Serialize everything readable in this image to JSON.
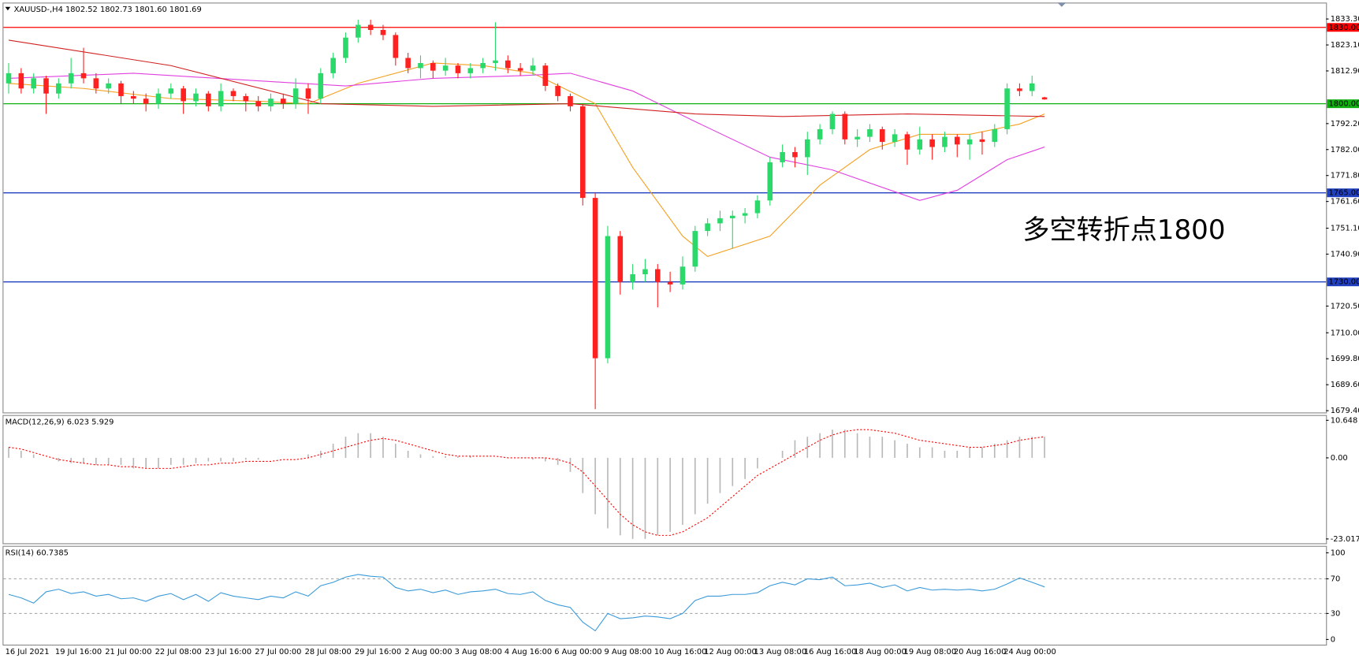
{
  "chart_data": [
    {
      "type": "candlestick",
      "title": "XAUUSD-,H4  1802.52 1802.73 1801.60 1801.69",
      "annotation": "多空转折点1800",
      "annotation_color": "#ff0000",
      "up_color": "#2bd96b",
      "down_color": "#ff2020",
      "ylim": [
        1678.7,
        1839.4
      ],
      "yticks": [
        {
          "value": 1679.4,
          "label": "1679.40"
        },
        {
          "value": 1689.6,
          "label": "1689.60"
        },
        {
          "value": 1699.8,
          "label": "1699.80"
        },
        {
          "value": 1710,
          "label": "1710.00"
        },
        {
          "value": 1720.5,
          "label": "1720.50"
        },
        {
          "value": 1740.9,
          "label": "1740.90"
        },
        {
          "value": 1751.1,
          "label": "1751.10"
        },
        {
          "value": 1761.6,
          "label": "1761.60"
        },
        {
          "value": 1771.8,
          "label": "1771.80"
        },
        {
          "value": 1782,
          "label": "1782.00"
        },
        {
          "value": 1792.2,
          "label": "1792.20"
        },
        {
          "value": 1812.9,
          "label": "1812.90"
        },
        {
          "value": 1823.1,
          "label": "1823.10"
        },
        {
          "value": 1833.3,
          "label": "1833.30"
        }
      ],
      "levels": [
        {
          "value": 1830,
          "label": "1830.00",
          "color": "#ff0000"
        },
        {
          "value": 1800,
          "label": "1800.00",
          "color": "#10b010"
        },
        {
          "value": 1765,
          "label": "1765.00",
          "color": "#2040c0"
        },
        {
          "value": 1730,
          "label": "1730.00",
          "color": "#2040c0"
        }
      ],
      "lines": [
        {
          "color": "#f5a020",
          "x": [
            0,
            6,
            13,
            20,
            24,
            28,
            34,
            38,
            42,
            47,
            50,
            54,
            56,
            61,
            65,
            69,
            73,
            77,
            81,
            83
          ],
          "values": [
            1808,
            1806,
            1802,
            1801,
            1800,
            1808,
            1816,
            1815,
            1812,
            1800,
            1775,
            1748,
            1740,
            1748,
            1768,
            1782,
            1788,
            1788,
            1792,
            1796
          ]
        },
        {
          "color": "#e040e0",
          "x": [
            0,
            10,
            20,
            27,
            34,
            41,
            45,
            50,
            55,
            61,
            66,
            73,
            76,
            80,
            83
          ],
          "values": [
            1810,
            1812,
            1809,
            1807,
            1810,
            1811,
            1812,
            1805,
            1793,
            1779,
            1774,
            1762,
            1766,
            1778,
            1783
          ]
        },
        {
          "color": "#d02020",
          "x": [
            0,
            13,
            25,
            34,
            45,
            55,
            62,
            72,
            83
          ],
          "values": [
            1825,
            1815,
            1800,
            1799,
            1800,
            1796,
            1795,
            1796,
            1795
          ]
        }
      ],
      "candles": [
        [
          1808,
          1816,
          1804,
          1812
        ],
        [
          1812,
          1814,
          1804,
          1806
        ],
        [
          1806,
          1812,
          1804,
          1810
        ],
        [
          1810,
          1811,
          1796,
          1804
        ],
        [
          1804,
          1810,
          1802,
          1808
        ],
        [
          1808,
          1818,
          1806,
          1812
        ],
        [
          1812,
          1822,
          1808,
          1810
        ],
        [
          1810,
          1812,
          1804,
          1806
        ],
        [
          1806,
          1810,
          1804,
          1808
        ],
        [
          1808,
          1809,
          1800,
          1803
        ],
        [
          1803,
          1805,
          1800,
          1802
        ],
        [
          1802,
          1804,
          1797,
          1800
        ],
        [
          1800,
          1806,
          1798,
          1804
        ],
        [
          1804,
          1808,
          1802,
          1806
        ],
        [
          1806,
          1807,
          1796,
          1801
        ],
        [
          1801,
          1806,
          1799,
          1804
        ],
        [
          1804,
          1805,
          1797,
          1799
        ],
        [
          1799,
          1808,
          1797,
          1805
        ],
        [
          1805,
          1806,
          1801,
          1803
        ],
        [
          1803,
          1804,
          1797,
          1801
        ],
        [
          1801,
          1803,
          1797,
          1799
        ],
        [
          1799,
          1804,
          1797,
          1802
        ],
        [
          1802,
          1804,
          1798,
          1800
        ],
        [
          1800,
          1810,
          1798,
          1806
        ],
        [
          1806,
          1808,
          1796,
          1802
        ],
        [
          1802,
          1814,
          1800,
          1812
        ],
        [
          1812,
          1820,
          1810,
          1818
        ],
        [
          1818,
          1828,
          1816,
          1826
        ],
        [
          1826,
          1833,
          1824,
          1831
        ],
        [
          1831,
          1833,
          1827,
          1829
        ],
        [
          1829,
          1831,
          1825,
          1827
        ],
        [
          1827,
          1828,
          1815,
          1818
        ],
        [
          1818,
          1820,
          1812,
          1814
        ],
        [
          1814,
          1819,
          1810,
          1816
        ],
        [
          1816,
          1817,
          1810,
          1813
        ],
        [
          1813,
          1818,
          1811,
          1815
        ],
        [
          1815,
          1816,
          1810,
          1812
        ],
        [
          1812,
          1816,
          1810,
          1814
        ],
        [
          1814,
          1818,
          1812,
          1816
        ],
        [
          1816,
          1832,
          1813,
          1817
        ],
        [
          1817,
          1819,
          1812,
          1814
        ],
        [
          1814,
          1816,
          1811,
          1813
        ],
        [
          1813,
          1818,
          1811,
          1815
        ],
        [
          1815,
          1816,
          1805,
          1807
        ],
        [
          1807,
          1808,
          1801,
          1803
        ],
        [
          1803,
          1804,
          1797,
          1799
        ],
        [
          1799,
          1800,
          1760,
          1763
        ],
        [
          1763,
          1765,
          1680,
          1700
        ],
        [
          1700,
          1752,
          1698,
          1748
        ],
        [
          1748,
          1750,
          1725,
          1730
        ],
        [
          1730,
          1737,
          1727,
          1733
        ],
        [
          1733,
          1739,
          1730,
          1735
        ],
        [
          1735,
          1737,
          1720,
          1730
        ],
        [
          1730,
          1734,
          1726,
          1729
        ],
        [
          1729,
          1740,
          1727,
          1736
        ],
        [
          1736,
          1752,
          1734,
          1750
        ],
        [
          1750,
          1755,
          1748,
          1753
        ],
        [
          1753,
          1758,
          1750,
          1755
        ],
        [
          1755,
          1758,
          1743,
          1756
        ],
        [
          1756,
          1759,
          1753,
          1757
        ],
        [
          1757,
          1764,
          1755,
          1762
        ],
        [
          1762,
          1779,
          1760,
          1777
        ],
        [
          1777,
          1784,
          1775,
          1781
        ],
        [
          1781,
          1783,
          1775,
          1779
        ],
        [
          1779,
          1789,
          1772,
          1786
        ],
        [
          1786,
          1792,
          1784,
          1790
        ],
        [
          1790,
          1797,
          1788,
          1796
        ],
        [
          1796,
          1797,
          1784,
          1786
        ],
        [
          1786,
          1790,
          1783,
          1787
        ],
        [
          1787,
          1792,
          1785,
          1790
        ],
        [
          1790,
          1791,
          1782,
          1785
        ],
        [
          1785,
          1790,
          1783,
          1788
        ],
        [
          1788,
          1789,
          1776,
          1782
        ],
        [
          1782,
          1791,
          1780,
          1786
        ],
        [
          1786,
          1788,
          1778,
          1783
        ],
        [
          1783,
          1789,
          1781,
          1787
        ],
        [
          1787,
          1788,
          1779,
          1784
        ],
        [
          1784,
          1788,
          1778,
          1786
        ],
        [
          1786,
          1789,
          1780,
          1785
        ],
        [
          1785,
          1792,
          1783,
          1790
        ],
        [
          1790,
          1808,
          1788,
          1806
        ],
        [
          1806,
          1808,
          1803,
          1805
        ],
        [
          1805,
          1811,
          1803,
          1808
        ],
        [
          1802.52,
          1802.73,
          1801.6,
          1801.69
        ]
      ]
    },
    {
      "type": "macd",
      "title": "MACD(12,26,9) 6.023 5.929",
      "ylim": [
        -24.25,
        11.9
      ],
      "yticks": [
        {
          "value": 10.648,
          "label": "10.648"
        },
        {
          "value": 0,
          "label": "0.00"
        },
        {
          "value": -23.017,
          "label": "-23.017"
        }
      ],
      "histogram": {
        "color": "#b8b8b8",
        "values": [
          3,
          2,
          1,
          0,
          -1,
          -1.5,
          -1.5,
          -2,
          -2,
          -2,
          -3,
          -3,
          -3,
          -2,
          -2,
          -1.5,
          -1,
          -1,
          -1,
          -0.5,
          -0.5,
          0,
          0,
          0,
          1,
          2,
          4,
          6,
          7,
          7,
          6,
          4,
          2,
          1,
          0.5,
          0.5,
          0.5,
          0.5,
          0,
          0,
          0,
          0,
          -0.5,
          -1,
          -2,
          -4,
          -10,
          -16,
          -20,
          -22,
          -23,
          -23,
          -22,
          -21,
          -19,
          -16,
          -13,
          -10,
          -8,
          -6,
          -3,
          0,
          2,
          5,
          6,
          7,
          8,
          8,
          7,
          6,
          6,
          5,
          4,
          3,
          3,
          2,
          2,
          3,
          3,
          4,
          5,
          6,
          6,
          6
        ]
      },
      "signal": {
        "color": "#ff0000",
        "values": [
          3,
          2.5,
          1.5,
          0.5,
          -0.5,
          -1,
          -1.5,
          -2,
          -2,
          -2.5,
          -2.5,
          -3,
          -3,
          -3,
          -2.5,
          -2,
          -2,
          -1.5,
          -1.5,
          -1,
          -1,
          -1,
          -0.5,
          -0.5,
          0,
          1,
          2,
          3,
          4,
          5,
          5.5,
          5,
          4,
          3,
          2,
          1,
          0.5,
          0.5,
          0.5,
          0.5,
          0,
          0,
          0,
          0,
          -0.5,
          -1.5,
          -4,
          -8,
          -12,
          -16,
          -19,
          -21,
          -22,
          -22,
          -21,
          -19,
          -17,
          -14,
          -11,
          -8,
          -5,
          -3,
          -1,
          1,
          3,
          5,
          6.5,
          7.5,
          8,
          8,
          7.5,
          7,
          6,
          5,
          4.5,
          4,
          3.5,
          3,
          3,
          3.5,
          4,
          5,
          5.5,
          6
        ]
      }
    },
    {
      "type": "rsi",
      "title": "RSI(14) 60.7385",
      "ylim": [
        -6,
        107
      ],
      "yticks": [
        100,
        70,
        30,
        0
      ],
      "levels": [
        70,
        30
      ],
      "series": {
        "color": "#3a9ad9",
        "values": [
          52,
          48,
          42,
          55,
          58,
          53,
          55,
          50,
          52,
          47,
          48,
          44,
          50,
          53,
          46,
          52,
          44,
          54,
          50,
          48,
          46,
          50,
          48,
          55,
          50,
          62,
          66,
          72,
          75,
          73,
          72,
          60,
          56,
          58,
          54,
          57,
          52,
          55,
          56,
          58,
          53,
          52,
          55,
          45,
          40,
          37,
          20,
          10,
          30,
          24,
          25,
          27,
          26,
          24,
          30,
          45,
          50,
          50,
          52,
          52,
          54,
          62,
          66,
          63,
          70,
          69,
          72,
          62,
          63,
          65,
          60,
          63,
          56,
          60,
          57,
          58,
          57,
          58,
          56,
          58,
          64,
          71,
          66,
          60.7385
        ]
      },
      "x_labels": [
        "16 Jul 2021",
        "19 Jul 16:00",
        "21 Jul 00:00",
        "22 Jul 08:00",
        "23 Jul 16:00",
        "27 Jul 00:00",
        "28 Jul 08:00",
        "29 Jul 16:00",
        "2 Aug 00:00",
        "3 Aug 08:00",
        "4 Aug 16:00",
        "6 Aug 00:00",
        "9 Aug 08:00",
        "10 Aug 16:00",
        "12 Aug 00:00",
        "13 Aug 08:00",
        "16 Aug 16:00",
        "18 Aug 00:00",
        "19 Aug 08:00",
        "20 Aug 16:00",
        "24 Aug 00:00"
      ]
    }
  ]
}
